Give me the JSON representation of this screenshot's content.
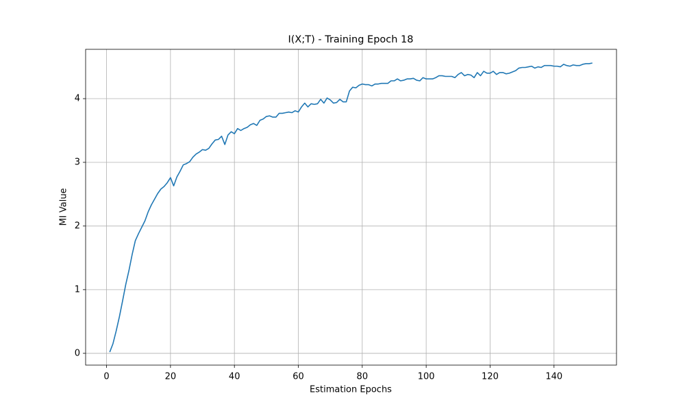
{
  "chart_data": {
    "type": "line",
    "title": "I(X;T) - Training Epoch 18",
    "x_label": "Estimation Epochs",
    "y_label": "MI Value",
    "x": [
      1,
      2,
      3,
      4,
      5,
      6,
      7,
      8,
      9,
      10,
      11,
      12,
      13,
      14,
      15,
      16,
      17,
      18,
      19,
      20,
      21,
      22,
      23,
      24,
      25,
      26,
      27,
      28,
      29,
      30,
      31,
      32,
      33,
      34,
      35,
      36,
      37,
      38,
      39,
      40,
      41,
      42,
      43,
      44,
      45,
      46,
      47,
      48,
      49,
      50,
      51,
      52,
      53,
      54,
      55,
      56,
      57,
      58,
      59,
      60,
      61,
      62,
      63,
      64,
      65,
      66,
      67,
      68,
      69,
      70,
      71,
      72,
      73,
      74,
      75,
      76,
      77,
      78,
      79,
      80,
      81,
      82,
      83,
      84,
      85,
      86,
      87,
      88,
      89,
      90,
      91,
      92,
      93,
      94,
      95,
      96,
      97,
      98,
      99,
      100,
      101,
      102,
      103,
      104,
      105,
      106,
      107,
      108,
      109,
      110,
      111,
      112,
      113,
      114,
      115,
      116,
      117,
      118,
      119,
      120,
      121,
      122,
      123,
      124,
      125,
      126,
      127,
      128,
      129,
      130,
      131,
      132,
      133,
      134,
      135,
      136,
      137,
      138,
      139,
      140,
      141,
      142,
      143,
      144,
      145,
      146,
      147,
      148,
      149,
      150,
      151,
      152
    ],
    "series": [
      {
        "name": "I(X;T)",
        "color": "#1f77b4",
        "values": [
          0.02,
          0.15,
          0.35,
          0.57,
          0.82,
          1.08,
          1.3,
          1.55,
          1.77,
          1.88,
          1.98,
          2.08,
          2.22,
          2.33,
          2.42,
          2.51,
          2.58,
          2.62,
          2.68,
          2.76,
          2.63,
          2.77,
          2.86,
          2.96,
          2.98,
          3.01,
          3.08,
          3.13,
          3.16,
          3.2,
          3.19,
          3.22,
          3.29,
          3.35,
          3.36,
          3.41,
          3.28,
          3.43,
          3.48,
          3.45,
          3.53,
          3.5,
          3.53,
          3.55,
          3.59,
          3.61,
          3.58,
          3.66,
          3.68,
          3.72,
          3.73,
          3.71,
          3.71,
          3.77,
          3.77,
          3.78,
          3.79,
          3.78,
          3.81,
          3.79,
          3.87,
          3.93,
          3.87,
          3.92,
          3.91,
          3.92,
          3.99,
          3.93,
          4.01,
          3.98,
          3.93,
          3.94,
          3.99,
          3.95,
          3.95,
          4.12,
          4.18,
          4.17,
          4.21,
          4.23,
          4.22,
          4.22,
          4.2,
          4.23,
          4.23,
          4.24,
          4.24,
          4.24,
          4.28,
          4.28,
          4.31,
          4.28,
          4.29,
          4.31,
          4.31,
          4.32,
          4.29,
          4.28,
          4.33,
          4.31,
          4.31,
          4.31,
          4.33,
          4.36,
          4.36,
          4.35,
          4.35,
          4.35,
          4.33,
          4.38,
          4.41,
          4.36,
          4.38,
          4.37,
          4.33,
          4.41,
          4.36,
          4.43,
          4.4,
          4.4,
          4.43,
          4.38,
          4.41,
          4.41,
          4.39,
          4.4,
          4.42,
          4.44,
          4.48,
          4.49,
          4.49,
          4.5,
          4.51,
          4.48,
          4.5,
          4.49,
          4.52,
          4.52,
          4.52,
          4.51,
          4.51,
          4.5,
          4.54,
          4.52,
          4.51,
          4.53,
          4.52,
          4.52,
          4.54,
          4.55,
          4.55,
          4.56
        ]
      }
    ],
    "xlim": [
      -6.55,
      159.55
    ],
    "ylim": [
      -0.185,
      4.775
    ],
    "xticks": [
      0,
      20,
      40,
      60,
      80,
      100,
      120,
      140
    ],
    "yticks": [
      0,
      1,
      2,
      3,
      4
    ],
    "grid": true
  }
}
